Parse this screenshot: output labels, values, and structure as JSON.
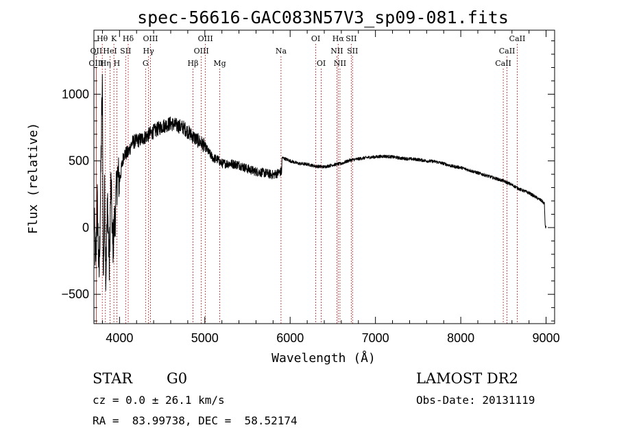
{
  "chart_data": {
    "type": "line",
    "title": "spec-56616-GAC083N57V3_sp09-081.fits",
    "xlabel": "Wavelength (Å)",
    "ylabel": "Flux (relative)",
    "xlim": [
      3700,
      9100
    ],
    "ylim": [
      -720,
      1480
    ],
    "xticks": [
      4000,
      5000,
      6000,
      7000,
      8000,
      9000
    ],
    "yticks": [
      -500,
      0,
      500,
      1000
    ],
    "series": [
      {
        "anchors": [
          [
            3700,
            100
          ],
          [
            3720,
            -300
          ],
          [
            3740,
            200
          ],
          [
            3760,
            -400
          ],
          [
            3775,
            150
          ],
          [
            3790,
            800
          ],
          [
            3800,
            1050
          ],
          [
            3810,
            -420
          ],
          [
            3825,
            250
          ],
          [
            3840,
            -350
          ],
          [
            3860,
            200
          ],
          [
            3880,
            -300
          ],
          [
            3900,
            350
          ],
          [
            3920,
            -150
          ],
          [
            3950,
            100
          ],
          [
            3975,
            400
          ],
          [
            4000,
            350
          ],
          [
            4050,
            550
          ],
          [
            4100,
            560
          ],
          [
            4150,
            640
          ],
          [
            4200,
            650
          ],
          [
            4250,
            660
          ],
          [
            4300,
            680
          ],
          [
            4350,
            700
          ],
          [
            4400,
            720
          ],
          [
            4450,
            740
          ],
          [
            4500,
            760
          ],
          [
            4550,
            770
          ],
          [
            4600,
            780
          ],
          [
            4650,
            770
          ],
          [
            4700,
            760
          ],
          [
            4750,
            750
          ],
          [
            4800,
            720
          ],
          [
            4850,
            690
          ],
          [
            4900,
            660
          ],
          [
            4950,
            640
          ],
          [
            5000,
            610
          ],
          [
            5050,
            560
          ],
          [
            5100,
            520
          ],
          [
            5150,
            510
          ],
          [
            5200,
            480
          ],
          [
            5300,
            480
          ],
          [
            5400,
            470
          ],
          [
            5500,
            440
          ],
          [
            5600,
            420
          ],
          [
            5700,
            410
          ],
          [
            5800,
            395
          ],
          [
            5900,
            420
          ],
          [
            5905,
            525
          ],
          [
            6000,
            500
          ],
          [
            6100,
            480
          ],
          [
            6200,
            475
          ],
          [
            6300,
            460
          ],
          [
            6400,
            455
          ],
          [
            6500,
            470
          ],
          [
            6600,
            480
          ],
          [
            6700,
            505
          ],
          [
            6800,
            515
          ],
          [
            6900,
            525
          ],
          [
            7000,
            530
          ],
          [
            7100,
            535
          ],
          [
            7200,
            530
          ],
          [
            7300,
            520
          ],
          [
            7400,
            515
          ],
          [
            7500,
            510
          ],
          [
            7600,
            500
          ],
          [
            7700,
            495
          ],
          [
            7800,
            480
          ],
          [
            7900,
            460
          ],
          [
            8000,
            450
          ],
          [
            8100,
            430
          ],
          [
            8200,
            410
          ],
          [
            8300,
            390
          ],
          [
            8400,
            370
          ],
          [
            8500,
            350
          ],
          [
            8600,
            320
          ],
          [
            8700,
            285
          ],
          [
            8800,
            260
          ],
          [
            8900,
            220
          ],
          [
            8950,
            200
          ],
          [
            8980,
            180
          ],
          [
            8990,
            5
          ],
          [
            9000,
            5
          ]
        ]
      }
    ],
    "lines": [
      {
        "label": "Hθ",
        "wave": 3798,
        "row": 0
      },
      {
        "label": "OII",
        "wave": 3727,
        "row": 1
      },
      {
        "label": "OIII",
        "wave": 3727,
        "row": 2
      },
      {
        "label": "K",
        "wave": 3934,
        "row": 0
      },
      {
        "label": "HeI",
        "wave": 3889,
        "row": 1
      },
      {
        "label": "Hη",
        "wave": 3835,
        "row": 2
      },
      {
        "label": "Hδ",
        "wave": 4102,
        "row": 0
      },
      {
        "label": "SII",
        "wave": 4072,
        "row": 1
      },
      {
        "label": "H",
        "wave": 3969,
        "row": 2
      },
      {
        "label": "OIII",
        "wave": 4363,
        "row": 0
      },
      {
        "label": "Hγ",
        "wave": 4340,
        "row": 1
      },
      {
        "label": "G",
        "wave": 4305,
        "row": 2
      },
      {
        "label": "OIII",
        "wave": 5007,
        "row": 0
      },
      {
        "label": "OIII",
        "wave": 4959,
        "row": 1
      },
      {
        "label": "Hβ",
        "wave": 4861,
        "row": 2
      },
      {
        "label": "Mg",
        "wave": 5175,
        "row": 2
      },
      {
        "label": "Na",
        "wave": 5893,
        "row": 1
      },
      {
        "label": "OI",
        "wave": 6300,
        "row": 0
      },
      {
        "label": "OI",
        "wave": 6364,
        "row": 2
      },
      {
        "label": "Hα",
        "wave": 6563,
        "row": 0
      },
      {
        "label": "SII",
        "wave": 6716,
        "row": 0
      },
      {
        "label": "NII",
        "wave": 6548,
        "row": 1
      },
      {
        "label": "SII",
        "wave": 6731,
        "row": 1
      },
      {
        "label": "NII",
        "wave": 6584,
        "row": 2
      },
      {
        "label": "CaII",
        "wave": 8662,
        "row": 0
      },
      {
        "label": "CaII",
        "wave": 8542,
        "row": 1
      },
      {
        "label": "CaII",
        "wave": 8498,
        "row": 2
      }
    ]
  },
  "info": {
    "class": "STAR",
    "subclass": "G0",
    "survey": "LAMOST DR2",
    "cz": "cz = 0.0 ± 26.1 km/s",
    "obs_date": "Obs-Date: 20131119",
    "radec": "RA =  83.99738, DEC =  58.52174"
  }
}
